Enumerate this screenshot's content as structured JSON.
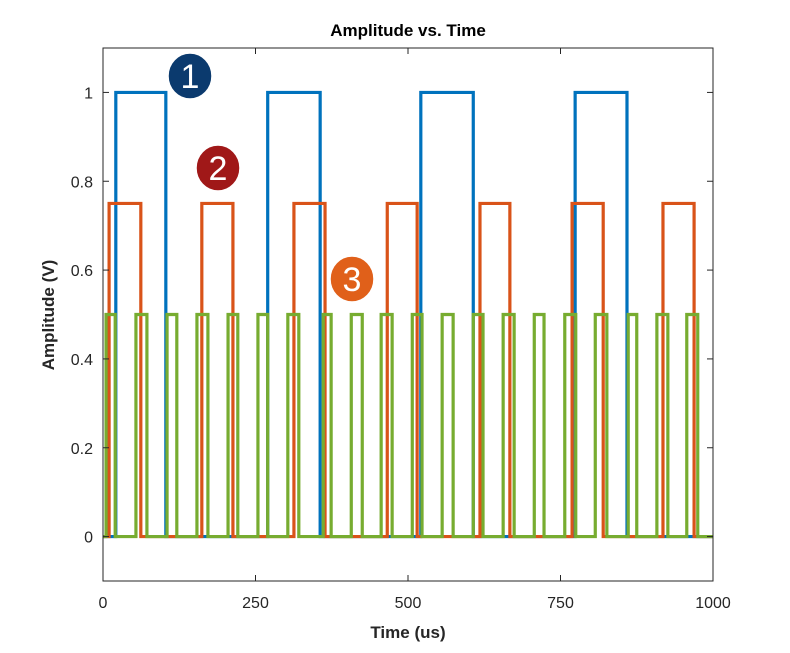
{
  "chart_data": {
    "type": "line",
    "title": "Amplitude vs. Time",
    "xlabel": "Time (us)",
    "ylabel": "Amplitude (V)",
    "xlim": [
      0,
      1000
    ],
    "ylim": [
      -0.1,
      1.1
    ],
    "xticks": [
      0,
      250,
      500,
      750,
      1000
    ],
    "xtick_labels": [
      "0",
      "250",
      "500",
      "750",
      "1000"
    ],
    "yticks": [
      0,
      0.2,
      0.4,
      0.6,
      0.8,
      1
    ],
    "ytick_labels": [
      "0",
      "0.2",
      "0.4",
      "0.6",
      "0.8",
      "1"
    ],
    "grid": false,
    "series": [
      {
        "name": "1",
        "color": "#0072BD",
        "amplitude": 1.0,
        "pulses": [
          [
            21,
            103
          ],
          [
            270,
            356
          ],
          [
            521,
            607
          ],
          [
            774,
            859
          ]
        ]
      },
      {
        "name": "2",
        "color": "#D95319",
        "amplitude": 0.75,
        "pulses": [
          [
            10,
            62
          ],
          [
            162,
            213
          ],
          [
            313,
            364
          ],
          [
            466,
            515
          ],
          [
            618,
            667
          ],
          [
            769,
            820
          ],
          [
            918,
            969
          ]
        ]
      },
      {
        "name": "3",
        "color": "#77AC30",
        "amplitude": 0.5,
        "pulses": [
          [
            5,
            20
          ],
          [
            54,
            72
          ],
          [
            105,
            121
          ],
          [
            154,
            172
          ],
          [
            205,
            221
          ],
          [
            254,
            270
          ],
          [
            303,
            321
          ],
          [
            361,
            374
          ],
          [
            407,
            425
          ],
          [
            456,
            474
          ],
          [
            507,
            523
          ],
          [
            556,
            574
          ],
          [
            607,
            623
          ],
          [
            656,
            674
          ],
          [
            707,
            723
          ],
          [
            757,
            775
          ],
          [
            807,
            826
          ],
          [
            861,
            875
          ],
          [
            908,
            926
          ],
          [
            957,
            975
          ]
        ]
      }
    ],
    "annotations": [
      {
        "text": "1",
        "color": "#0B3A6E"
      },
      {
        "text": "2",
        "color": "#A01818"
      },
      {
        "text": "3",
        "color": "#E0601A"
      }
    ]
  }
}
